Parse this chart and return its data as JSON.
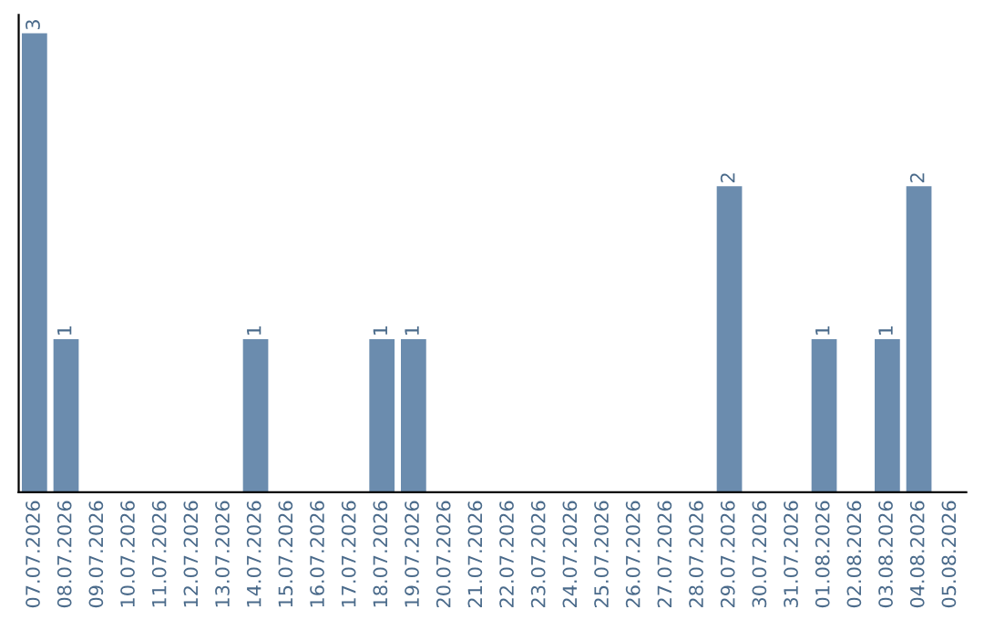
{
  "chart_data": {
    "type": "bar",
    "categories": [
      "07.07.2026",
      "08.07.2026",
      "09.07.2026",
      "10.07.2026",
      "11.07.2026",
      "12.07.2026",
      "13.07.2026",
      "14.07.2026",
      "15.07.2026",
      "16.07.2026",
      "17.07.2026",
      "18.07.2026",
      "19.07.2026",
      "20.07.2026",
      "21.07.2026",
      "22.07.2026",
      "23.07.2026",
      "24.07.2026",
      "25.07.2026",
      "26.07.2026",
      "27.07.2026",
      "28.07.2026",
      "29.07.2026",
      "30.07.2026",
      "31.07.2026",
      "01.08.2026",
      "02.08.2026",
      "03.08.2026",
      "04.08.2026",
      "05.08.2026"
    ],
    "values": [
      3,
      1,
      0,
      0,
      0,
      0,
      0,
      1,
      0,
      0,
      0,
      1,
      1,
      0,
      0,
      0,
      0,
      0,
      0,
      0,
      0,
      0,
      2,
      0,
      0,
      1,
      0,
      1,
      2,
      0
    ],
    "value_labels": [
      "3",
      "1",
      null,
      null,
      null,
      null,
      null,
      "1",
      null,
      null,
      null,
      "1",
      "1",
      null,
      null,
      null,
      null,
      null,
      null,
      null,
      null,
      null,
      "2",
      null,
      null,
      "1",
      null,
      "1",
      "2",
      null
    ],
    "color": "#6b8cae",
    "grid": false,
    "legend": false
  }
}
